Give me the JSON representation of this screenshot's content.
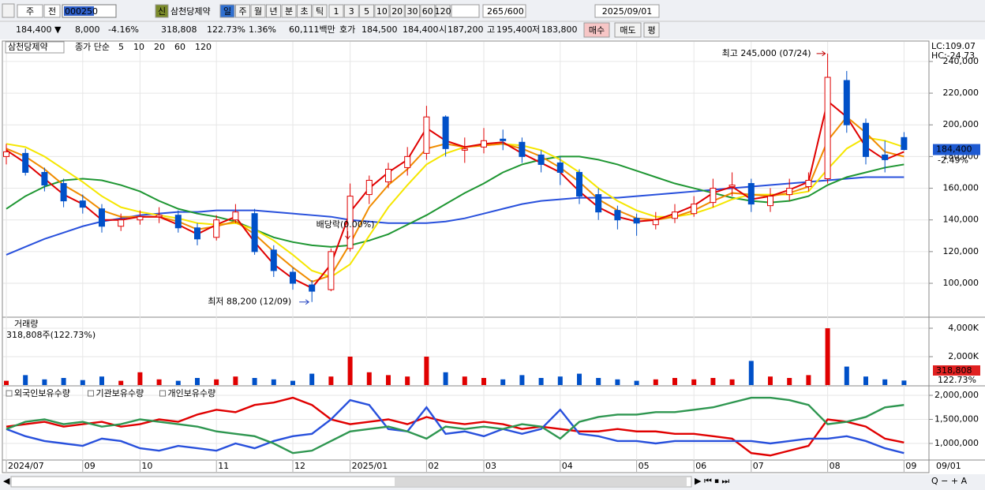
{
  "toolbar": {
    "period": "주",
    "prev": "전",
    "code": "000250",
    "new_badge": "신",
    "name": "삼천당제약",
    "periods": [
      "일",
      "주",
      "월",
      "년",
      "분",
      "초",
      "틱"
    ],
    "intervals": [
      "1",
      "3",
      "5",
      "10",
      "20",
      "30",
      "60",
      "120"
    ],
    "count": "265",
    "max_count": "/600",
    "date": "2025/09/01"
  },
  "quote": {
    "price": "184,400 ▼",
    "change": "8,000",
    "change_pct": "-4.16%",
    "volume": "318,808",
    "volume_ratio": "122.73%",
    "turnover": "1.36%",
    "amount": "60,111백만",
    "bid_ask_label": "호가",
    "ask": "184,500",
    "bid": "184,400",
    "open_label": "시",
    "open": "187,200",
    "high_label": "고",
    "high": "195,400",
    "low_label": "저",
    "low": "183,800",
    "buy": "매수",
    "sell": "매도",
    "avg": "평"
  },
  "chart_data": [
    {
      "type": "candlestick",
      "name": "삼천당제약",
      "legend_title": "종가 단순",
      "up_color": "#e00000",
      "down_color": "#0050c8",
      "open": [
        180000,
        182000,
        170000,
        163000,
        152000,
        147000,
        136000,
        140000,
        142000,
        143000,
        135000,
        129000,
        140000,
        144000,
        121000,
        107000,
        99000,
        96000,
        122000,
        156000,
        164000,
        173000,
        182000,
        205000,
        184000,
        186000,
        191000,
        189000,
        181000,
        176000,
        170000,
        156000,
        146000,
        141000,
        137000,
        141000,
        144000,
        151000,
        161000,
        163000,
        149000,
        156000,
        161000,
        166000,
        228000,
        201000,
        181000,
        192000
      ],
      "high": [
        188000,
        185000,
        173000,
        166000,
        156000,
        150000,
        144000,
        146000,
        148000,
        146000,
        138000,
        143000,
        150000,
        147000,
        124000,
        110000,
        102000,
        122000,
        163000,
        168000,
        176000,
        186000,
        212000,
        206000,
        192000,
        198000,
        197000,
        192000,
        184000,
        180000,
        172000,
        160000,
        149000,
        144000,
        145000,
        150000,
        155000,
        166000,
        170000,
        166000,
        160000,
        166000,
        170000,
        245000,
        234000,
        204000,
        190000,
        195400
      ],
      "low": [
        175000,
        168000,
        158000,
        148000,
        144000,
        132000,
        133000,
        137000,
        138000,
        132000,
        124000,
        127000,
        138000,
        118000,
        104000,
        96000,
        88200,
        95000,
        120000,
        150000,
        160000,
        168000,
        178000,
        180000,
        176000,
        182000,
        184000,
        176000,
        170000,
        162000,
        150000,
        140000,
        134000,
        130000,
        134000,
        138000,
        142000,
        148000,
        155000,
        145000,
        145000,
        152000,
        158000,
        163000,
        195000,
        175000,
        170000,
        183800
      ],
      "close": [
        183000,
        170000,
        162000,
        152000,
        148000,
        136000,
        140000,
        142000,
        143000,
        135000,
        128000,
        140000,
        145000,
        120000,
        108000,
        100000,
        95000,
        120000,
        155000,
        165000,
        172000,
        180000,
        205000,
        185000,
        185000,
        190000,
        190000,
        180000,
        175000,
        170000,
        155000,
        145000,
        140000,
        138000,
        140000,
        145000,
        150000,
        160000,
        162000,
        150000,
        155000,
        160000,
        165000,
        230000,
        200000,
        180000,
        178000,
        184400
      ],
      "series": [
        {
          "name": "5",
          "color": "#e00000",
          "values": [
            184000,
            176000,
            166000,
            156000,
            150000,
            140000,
            140000,
            142000,
            142000,
            137000,
            131000,
            137000,
            142000,
            126000,
            112000,
            103000,
            97000,
            112000,
            145000,
            160000,
            170000,
            178000,
            198000,
            190000,
            186000,
            188000,
            189000,
            182000,
            176000,
            170000,
            158000,
            148000,
            142000,
            139000,
            140000,
            144000,
            149000,
            157000,
            161000,
            153000,
            155000,
            159000,
            164000,
            215000,
            205000,
            186000,
            178000,
            183000
          ]
        },
        {
          "name": "10",
          "color": "#f08c00",
          "values": [
            185000,
            180000,
            172000,
            162000,
            155000,
            146000,
            142000,
            142000,
            142000,
            139000,
            134000,
            136000,
            139000,
            131000,
            120000,
            110000,
            101000,
            105000,
            125000,
            148000,
            162000,
            172000,
            185000,
            188000,
            186000,
            187000,
            188000,
            185000,
            180000,
            173000,
            164000,
            153000,
            146000,
            141000,
            140000,
            142000,
            146000,
            152000,
            157000,
            156000,
            155000,
            157000,
            161000,
            190000,
            205000,
            195000,
            183000,
            180000
          ]
        },
        {
          "name": "20",
          "color": "#f5e600",
          "values": [
            188000,
            186000,
            180000,
            172000,
            164000,
            155000,
            148000,
            145000,
            143000,
            141000,
            138000,
            137000,
            138000,
            134000,
            127000,
            118000,
            108000,
            104000,
            112000,
            130000,
            148000,
            162000,
            175000,
            182000,
            186000,
            187000,
            188000,
            187000,
            184000,
            178000,
            170000,
            160000,
            152000,
            146000,
            142000,
            142000,
            144000,
            148000,
            153000,
            156000,
            156000,
            156000,
            158000,
            172000,
            185000,
            192000,
            190000,
            186000
          ]
        },
        {
          "name": "60",
          "color": "#1e9632",
          "values": [
            147000,
            155000,
            161000,
            165000,
            166000,
            165000,
            162000,
            158000,
            152000,
            147000,
            144000,
            142000,
            139000,
            134000,
            129000,
            126000,
            124000,
            123000,
            124000,
            127000,
            131000,
            137000,
            143000,
            150000,
            157000,
            163000,
            170000,
            175000,
            178000,
            180000,
            180000,
            178000,
            175000,
            171000,
            167000,
            163000,
            160000,
            157000,
            154000,
            152000,
            151000,
            152000,
            155000,
            162000,
            167000,
            170000,
            173000,
            175000
          ]
        },
        {
          "name": "120",
          "color": "#2850dc",
          "values": [
            118000,
            123000,
            128000,
            132000,
            136000,
            139000,
            141000,
            143000,
            144000,
            145000,
            145000,
            146000,
            146000,
            146000,
            145000,
            144000,
            143000,
            142000,
            140000,
            139000,
            138000,
            138000,
            138000,
            139000,
            141000,
            144000,
            147000,
            150000,
            152000,
            153000,
            154000,
            154000,
            154000,
            155000,
            156000,
            157000,
            158000,
            159000,
            160000,
            161000,
            162000,
            163000,
            164000,
            165000,
            166000,
            167000,
            167000,
            167000
          ]
        }
      ],
      "ylim": [
        79600,
        252400
      ],
      "yticks": [
        {
          "value": 100000,
          "label": "100,000"
        },
        {
          "value": 120000,
          "label": "120,000"
        },
        {
          "value": 140000,
          "label": "140,000"
        },
        {
          "value": 160000,
          "label": "160,000"
        },
        {
          "value": 180000,
          "label": "180,000"
        },
        {
          "value": 200000,
          "label": "200,000"
        },
        {
          "value": 220000,
          "label": "220,000"
        },
        {
          "value": 240000,
          "label": "240,000"
        }
      ],
      "grid": true,
      "lc": "LC:109.07",
      "hc": "HC:-24.73",
      "last_label": "184,400",
      "last_change": "-2.49%",
      "annotations": {
        "high": "최고 245,000 (07/24)",
        "low": "최저 88,200 (12/09)",
        "dividend": "배당락(0.00%)"
      }
    },
    {
      "type": "bar",
      "title": "거래량",
      "subtitle": "318,808주(122.73%)",
      "values": [
        300000,
        700000,
        400000,
        500000,
        350000,
        600000,
        300000,
        900000,
        400000,
        300000,
        500000,
        400000,
        600000,
        500000,
        400000,
        300000,
        800000,
        600000,
        2000000,
        900000,
        700000,
        600000,
        2000000,
        900000,
        600000,
        500000,
        400000,
        700000,
        500000,
        600000,
        800000,
        500000,
        400000,
        300000,
        400000,
        500000,
        400000,
        500000,
        400000,
        1700000,
        600000,
        500000,
        700000,
        4000000,
        1300000,
        600000,
        400000,
        318808
      ],
      "ylim": [
        0,
        4611000
      ],
      "yticks": [
        {
          "value": 2000000,
          "label": "2,000K"
        },
        {
          "value": 4000000,
          "label": "4,000K"
        }
      ],
      "last_label": "318,808",
      "last_ratio": "122.73%"
    },
    {
      "type": "line",
      "categories": [
        "2024/07",
        null,
        null,
        null,
        "09",
        null,
        null,
        "10",
        null,
        null,
        null,
        "11",
        null,
        null,
        null,
        "12",
        null,
        null,
        "2025/01",
        null,
        null,
        null,
        "02",
        null,
        null,
        "03",
        null,
        null,
        null,
        "04",
        null,
        null,
        null,
        "05",
        null,
        null,
        "06",
        null,
        null,
        "07",
        null,
        null,
        null,
        "08",
        null,
        null,
        null,
        "09"
      ],
      "series": [
        {
          "name": "외국인보유수량",
          "color": "#e00000",
          "values": [
            1350000,
            1400000,
            1450000,
            1350000,
            1400000,
            1450000,
            1350000,
            1400000,
            1500000,
            1450000,
            1600000,
            1700000,
            1650000,
            1800000,
            1850000,
            1950000,
            1800000,
            1500000,
            1400000,
            1450000,
            1500000,
            1400000,
            1550000,
            1450000,
            1400000,
            1450000,
            1400000,
            1300000,
            1350000,
            1300000,
            1250000,
            1250000,
            1300000,
            1250000,
            1250000,
            1200000,
            1200000,
            1150000,
            1100000,
            800000,
            750000,
            850000,
            950000,
            1500000,
            1450000,
            1350000,
            1100000,
            1020000
          ]
        },
        {
          "name": "기관보유수량",
          "color": "#2850dc",
          "values": [
            1300000,
            1150000,
            1050000,
            1000000,
            950000,
            1100000,
            1050000,
            900000,
            850000,
            950000,
            900000,
            850000,
            1000000,
            900000,
            1050000,
            1150000,
            1200000,
            1500000,
            1900000,
            1800000,
            1300000,
            1250000,
            1750000,
            1200000,
            1250000,
            1150000,
            1300000,
            1200000,
            1300000,
            1700000,
            1200000,
            1150000,
            1050000,
            1050000,
            1000000,
            1050000,
            1050000,
            1050000,
            1050000,
            1050000,
            1000000,
            1050000,
            1100000,
            1100000,
            1150000,
            1050000,
            900000,
            800000
          ]
        },
        {
          "name": "개인보유수량",
          "color": "#2e9650",
          "values": [
            1300000,
            1450000,
            1500000,
            1400000,
            1450000,
            1350000,
            1400000,
            1500000,
            1450000,
            1400000,
            1350000,
            1250000,
            1200000,
            1150000,
            1000000,
            800000,
            850000,
            1050000,
            1250000,
            1300000,
            1350000,
            1250000,
            1100000,
            1350000,
            1300000,
            1350000,
            1300000,
            1400000,
            1350000,
            1100000,
            1450000,
            1550000,
            1600000,
            1600000,
            1650000,
            1650000,
            1700000,
            1750000,
            1850000,
            1950000,
            1950000,
            1900000,
            1800000,
            1400000,
            1450000,
            1550000,
            1750000,
            1800000
          ]
        }
      ],
      "ylim": [
        655700,
        2147500
      ],
      "yticks": [
        {
          "value": 1000000,
          "label": "1,000,000"
        },
        {
          "value": 1500000,
          "label": "1,500,000"
        },
        {
          "value": 2000000,
          "label": "2,000,000"
        }
      ],
      "end_label": "09/01"
    }
  ]
}
